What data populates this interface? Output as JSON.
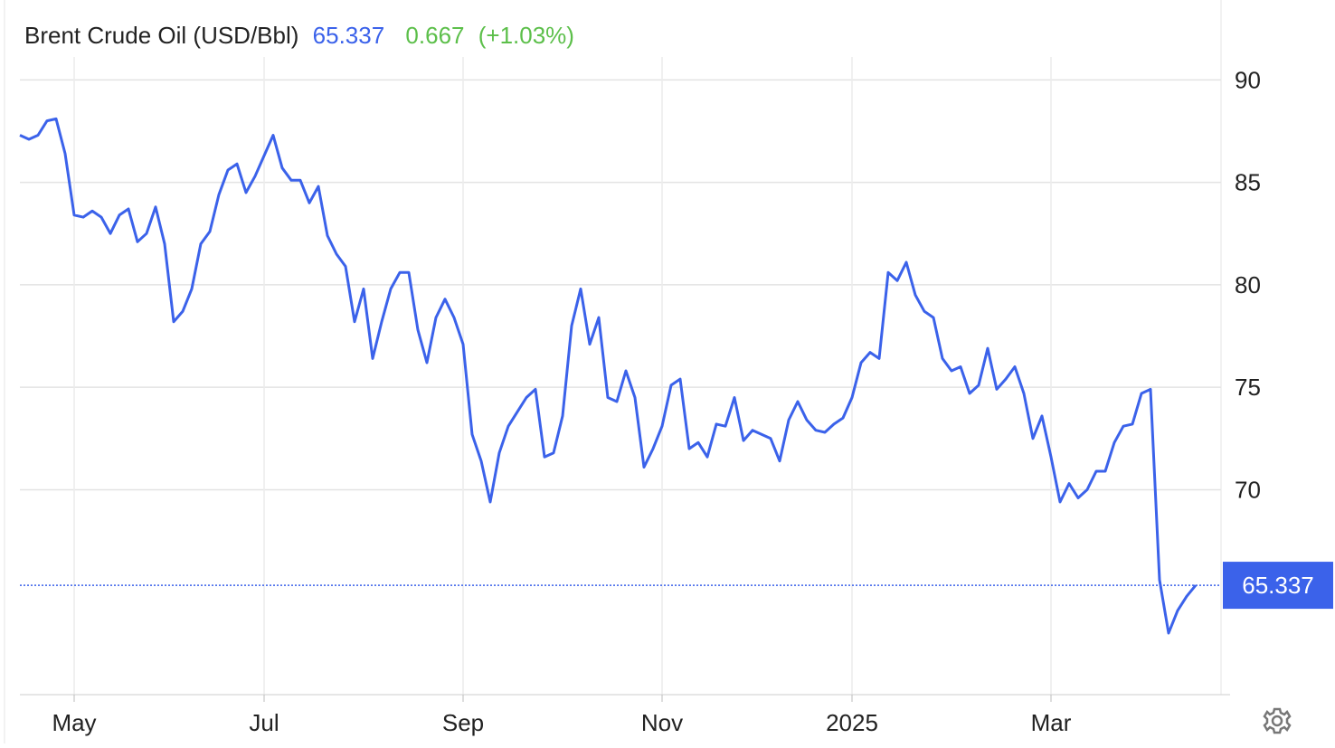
{
  "chart_data": {
    "type": "line",
    "title": "Brent Crude Oil (USD/Bbl)",
    "last_price": 65.337,
    "change": 0.667,
    "change_pct": "(+1.03%)",
    "color": "#3b62ea",
    "change_color": "#5cbf4a",
    "grid": true,
    "ylim": [
      60,
      92
    ],
    "yticks": [
      70,
      75,
      80,
      85,
      90
    ],
    "categories": [
      null,
      null,
      null,
      null,
      null,
      null,
      "May",
      null,
      null,
      null,
      null,
      null,
      null,
      null,
      null,
      null,
      null,
      null,
      null,
      null,
      null,
      null,
      null,
      null,
      null,
      null,
      null,
      "Jul",
      null,
      null,
      null,
      null,
      null,
      null,
      null,
      null,
      null,
      null,
      null,
      null,
      null,
      null,
      null,
      null,
      null,
      null,
      null,
      null,
      null,
      "Sep",
      null,
      null,
      null,
      null,
      null,
      null,
      null,
      null,
      null,
      null,
      null,
      null,
      null,
      null,
      null,
      null,
      null,
      null,
      null,
      null,
      null,
      "Nov",
      null,
      null,
      null,
      null,
      null,
      null,
      null,
      null,
      null,
      null,
      null,
      null,
      null,
      null,
      null,
      null,
      null,
      null,
      null,
      null,
      "2025",
      null,
      null,
      null,
      null,
      null,
      null,
      null,
      null,
      null,
      null,
      null,
      null,
      null,
      null,
      null,
      null,
      null,
      null,
      null,
      null,
      null,
      "Mar",
      null,
      null,
      null,
      null,
      null,
      null,
      null,
      null,
      null,
      null,
      null,
      null,
      null,
      null,
      null,
      null
    ],
    "values": [
      87.3,
      87.1,
      87.3,
      88.0,
      88.1,
      86.4,
      83.4,
      83.3,
      83.6,
      83.3,
      82.5,
      83.4,
      83.7,
      82.1,
      82.5,
      83.8,
      82.0,
      78.2,
      78.7,
      79.8,
      82.0,
      82.6,
      84.4,
      85.6,
      85.9,
      84.5,
      85.3,
      86.3,
      87.3,
      85.7,
      85.1,
      85.1,
      84.0,
      84.8,
      82.4,
      81.5,
      80.9,
      78.2,
      79.8,
      76.4,
      78.2,
      79.8,
      80.6,
      80.6,
      77.8,
      76.2,
      78.4,
      79.3,
      78.4,
      77.1,
      72.7,
      71.4,
      69.4,
      71.8,
      73.1,
      73.8,
      74.5,
      74.9,
      71.6,
      71.8,
      73.6,
      78.0,
      79.8,
      77.1,
      78.4,
      74.5,
      74.3,
      75.8,
      74.5,
      71.1,
      72.0,
      73.1,
      75.1,
      75.4,
      72.0,
      72.3,
      71.6,
      73.2,
      73.1,
      74.5,
      72.4,
      72.9,
      72.7,
      72.5,
      71.4,
      73.4,
      74.3,
      73.4,
      72.9,
      72.8,
      73.2,
      73.5,
      74.5,
      76.2,
      76.7,
      76.4,
      80.6,
      80.2,
      81.1,
      79.5,
      78.7,
      78.4,
      76.4,
      75.8,
      76.0,
      74.7,
      75.1,
      76.9,
      74.9,
      75.4,
      76.0,
      74.7,
      72.5,
      73.6,
      71.6,
      69.4,
      70.3,
      69.6,
      70.0,
      70.9,
      70.9,
      72.3,
      73.1,
      73.2,
      74.7,
      74.9,
      65.6,
      63.0,
      64.1,
      64.8,
      65.337
    ]
  }
}
